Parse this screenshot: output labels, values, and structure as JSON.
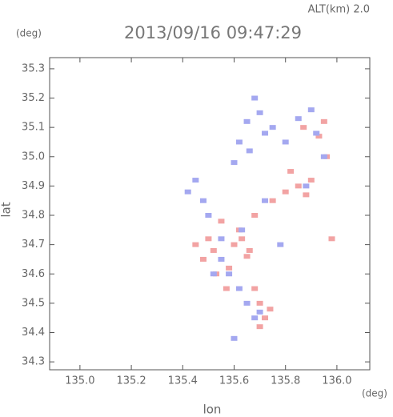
{
  "chart_data": {
    "type": "scatter",
    "title": "2013/09/16 09:47:29",
    "subtitle": "ALT(km)  2.0",
    "y_unit": "(deg)",
    "x_unit": "(deg)",
    "xlabel": "lon",
    "ylabel": "lat",
    "xlim": [
      134.882,
      136.128
    ],
    "ylim": [
      34.273,
      35.338
    ],
    "xticks": [
      {
        "value": 135.0,
        "label": "135.0"
      },
      135.2,
      135.4,
      135.6,
      135.8,
      {
        "value": 136.0,
        "label": "136.0"
      }
    ],
    "yticks": [
      34.3,
      34.4,
      34.5,
      34.6,
      34.7,
      34.8,
      34.9,
      {
        "value": 35.0,
        "label": "35.0"
      },
      35.1,
      35.2,
      35.3
    ],
    "series": [
      {
        "color": "#f2a3a3",
        "x": [
          135.5,
          135.52,
          135.55,
          135.58,
          135.6,
          135.62,
          135.65,
          135.68,
          135.7,
          135.72,
          135.75,
          135.8,
          135.85,
          135.88,
          135.9,
          135.93,
          135.96,
          135.45,
          135.48,
          135.53,
          135.57,
          135.63,
          135.66,
          135.7,
          135.74,
          135.82,
          135.87,
          135.95,
          135.98,
          135.68
        ],
        "values": [
          34.72,
          34.68,
          34.78,
          34.62,
          34.7,
          34.75,
          34.66,
          34.8,
          34.5,
          34.45,
          34.85,
          34.88,
          34.9,
          34.87,
          34.92,
          35.07,
          35.0,
          34.7,
          34.65,
          34.6,
          34.55,
          34.72,
          34.68,
          34.42,
          34.48,
          34.95,
          35.1,
          35.12,
          34.72,
          34.55
        ]
      },
      {
        "color": "#a4a8f0",
        "x": [
          135.42,
          135.45,
          135.48,
          135.5,
          135.55,
          135.6,
          135.62,
          135.65,
          135.68,
          135.7,
          135.72,
          135.75,
          135.8,
          135.85,
          135.9,
          135.92,
          135.95,
          135.58,
          135.62,
          135.65,
          135.7,
          135.55,
          135.6,
          135.52,
          135.68,
          135.72,
          135.63,
          135.88,
          135.78,
          135.66
        ],
        "values": [
          34.88,
          34.92,
          34.85,
          34.8,
          34.65,
          34.98,
          35.05,
          35.12,
          35.2,
          35.15,
          35.08,
          35.1,
          35.05,
          35.13,
          35.16,
          35.08,
          35.0,
          34.6,
          34.55,
          34.5,
          34.47,
          34.72,
          34.38,
          34.6,
          34.45,
          34.85,
          34.75,
          34.9,
          34.7,
          35.02
        ]
      }
    ]
  }
}
